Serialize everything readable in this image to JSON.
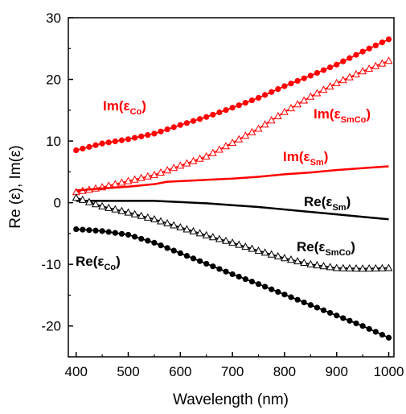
{
  "chart_data": {
    "type": "line",
    "xlabel": "Wavelength (nm)",
    "ylabel": "Re (ε), Im(ε)",
    "xlim": [
      385,
      1010
    ],
    "ylim": [
      -25,
      30
    ],
    "xticks": [
      400,
      500,
      600,
      700,
      800,
      900,
      1000
    ],
    "yticks": [
      -20,
      -10,
      0,
      10,
      20,
      30
    ],
    "grid": false,
    "legend": "none",
    "colors": {
      "im": "#ff0000",
      "re": "#000000"
    },
    "series": [
      {
        "name": "Im(εCo)",
        "label": {
          "main": "Im(ε",
          "sub": "Co",
          "close": ")"
        },
        "color": "#ff0000",
        "marker": "filled-circle",
        "points": [
          [
            400,
            8.5
          ],
          [
            450,
            9.6
          ],
          [
            500,
            10.3
          ],
          [
            550,
            11.2
          ],
          [
            600,
            12.6
          ],
          [
            650,
            13.9
          ],
          [
            700,
            15.4
          ],
          [
            750,
            17.0
          ],
          [
            800,
            18.9
          ],
          [
            850,
            20.6
          ],
          [
            900,
            22.4
          ],
          [
            950,
            24.5
          ],
          [
            1000,
            26.5
          ]
        ]
      },
      {
        "name": "Im(εSmCo)",
        "label": {
          "main": "Im(ε",
          "sub": "SmCo",
          "close": ")"
        },
        "color": "#ff0000",
        "marker": "open-triangle",
        "points": [
          [
            400,
            1.7
          ],
          [
            450,
            2.5
          ],
          [
            500,
            3.5
          ],
          [
            550,
            4.5
          ],
          [
            600,
            6.0
          ],
          [
            650,
            7.5
          ],
          [
            700,
            9.7
          ],
          [
            750,
            12.0
          ],
          [
            800,
            14.7
          ],
          [
            850,
            17.2
          ],
          [
            900,
            19.4
          ],
          [
            950,
            21.3
          ],
          [
            1000,
            23.0
          ]
        ]
      },
      {
        "name": "Im(εSm)",
        "label": {
          "main": "Im(ε",
          "sub": "Sm",
          "close": ")"
        },
        "color": "#ff0000",
        "marker": "none",
        "points": [
          [
            400,
            2.0
          ],
          [
            450,
            2.3
          ],
          [
            500,
            2.6
          ],
          [
            550,
            3.0
          ],
          [
            575,
            3.4
          ],
          [
            600,
            3.5
          ],
          [
            650,
            3.7
          ],
          [
            700,
            3.9
          ],
          [
            750,
            4.2
          ],
          [
            800,
            4.6
          ],
          [
            850,
            4.9
          ],
          [
            900,
            5.3
          ],
          [
            950,
            5.6
          ],
          [
            1000,
            5.9
          ]
        ]
      },
      {
        "name": "Re(εSm)",
        "label": {
          "main": "Re(ε",
          "sub": "Sm",
          "close": ")"
        },
        "color": "#000000",
        "marker": "none",
        "points": [
          [
            400,
            0.3
          ],
          [
            450,
            0.3
          ],
          [
            500,
            0.3
          ],
          [
            550,
            0.3
          ],
          [
            600,
            0.1
          ],
          [
            650,
            -0.1
          ],
          [
            700,
            -0.4
          ],
          [
            750,
            -0.7
          ],
          [
            800,
            -1.1
          ],
          [
            850,
            -1.5
          ],
          [
            900,
            -1.9
          ],
          [
            950,
            -2.3
          ],
          [
            1000,
            -2.7
          ]
        ]
      },
      {
        "name": "Re(εSmCo)",
        "label": {
          "main": "Re(ε",
          "sub": "SmCo",
          "close": ")"
        },
        "color": "#000000",
        "marker": "open-triangle",
        "points": [
          [
            400,
            0.8
          ],
          [
            450,
            -0.6
          ],
          [
            500,
            -1.6
          ],
          [
            550,
            -2.7
          ],
          [
            600,
            -4.0
          ],
          [
            650,
            -5.3
          ],
          [
            700,
            -6.5
          ],
          [
            750,
            -7.8
          ],
          [
            800,
            -9.0
          ],
          [
            850,
            -10.0
          ],
          [
            900,
            -10.6
          ],
          [
            950,
            -10.7
          ],
          [
            1000,
            -10.6
          ]
        ]
      },
      {
        "name": "Re(εCo)",
        "label": {
          "main": "Re(ε",
          "sub": "Co",
          "close": ")"
        },
        "color": "#000000",
        "marker": "filled-circle",
        "points": [
          [
            400,
            -4.3
          ],
          [
            450,
            -4.6
          ],
          [
            500,
            -5.2
          ],
          [
            550,
            -6.5
          ],
          [
            600,
            -8.2
          ],
          [
            650,
            -9.9
          ],
          [
            700,
            -11.6
          ],
          [
            750,
            -13.2
          ],
          [
            800,
            -14.9
          ],
          [
            850,
            -16.6
          ],
          [
            900,
            -18.3
          ],
          [
            950,
            -20.0
          ],
          [
            1000,
            -21.9
          ]
        ]
      }
    ]
  }
}
